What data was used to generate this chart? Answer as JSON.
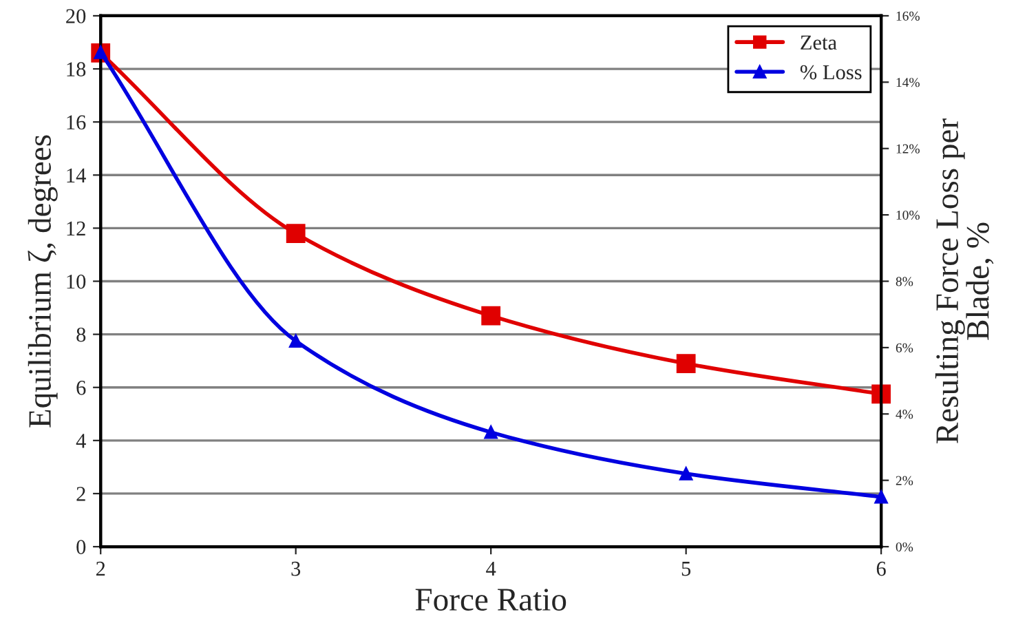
{
  "chart_data": {
    "type": "line",
    "xlabel": "Force Ratio",
    "ylabel": "Equilibrium ζ, degrees",
    "y2label": "Resulting Force Loss per Blade, %",
    "x": [
      2,
      3,
      4,
      5,
      6
    ],
    "series": [
      {
        "name": "Zeta",
        "color": "#e00000",
        "marker": "square",
        "values": [
          18.6,
          11.8,
          8.7,
          6.9,
          5.75
        ]
      },
      {
        "name": "% Loss",
        "color": "#0000e0",
        "marker": "triangle",
        "axis": "y2",
        "values": [
          14.9,
          6.2,
          3.45,
          2.2,
          1.5
        ]
      }
    ],
    "xlim": [
      2,
      6
    ],
    "xticks": [
      2,
      3,
      4,
      5,
      6
    ],
    "ylim": [
      0,
      20
    ],
    "yticks": [
      0,
      2,
      4,
      6,
      8,
      10,
      12,
      14,
      16,
      18,
      20
    ],
    "y2lim": [
      0,
      16
    ],
    "y2ticks": [
      {
        "value": 0,
        "label": "0%"
      },
      {
        "value": 2,
        "label": "2%"
      },
      {
        "value": 4,
        "label": "4%"
      },
      {
        "value": 6,
        "label": "6%"
      },
      {
        "value": 8,
        "label": "8%"
      },
      {
        "value": 10,
        "label": "10%"
      },
      {
        "value": 12,
        "label": "12%"
      },
      {
        "value": 14,
        "label": "14%"
      },
      {
        "value": 16,
        "label": "16%"
      }
    ],
    "grid": "y",
    "legend": "top right"
  }
}
